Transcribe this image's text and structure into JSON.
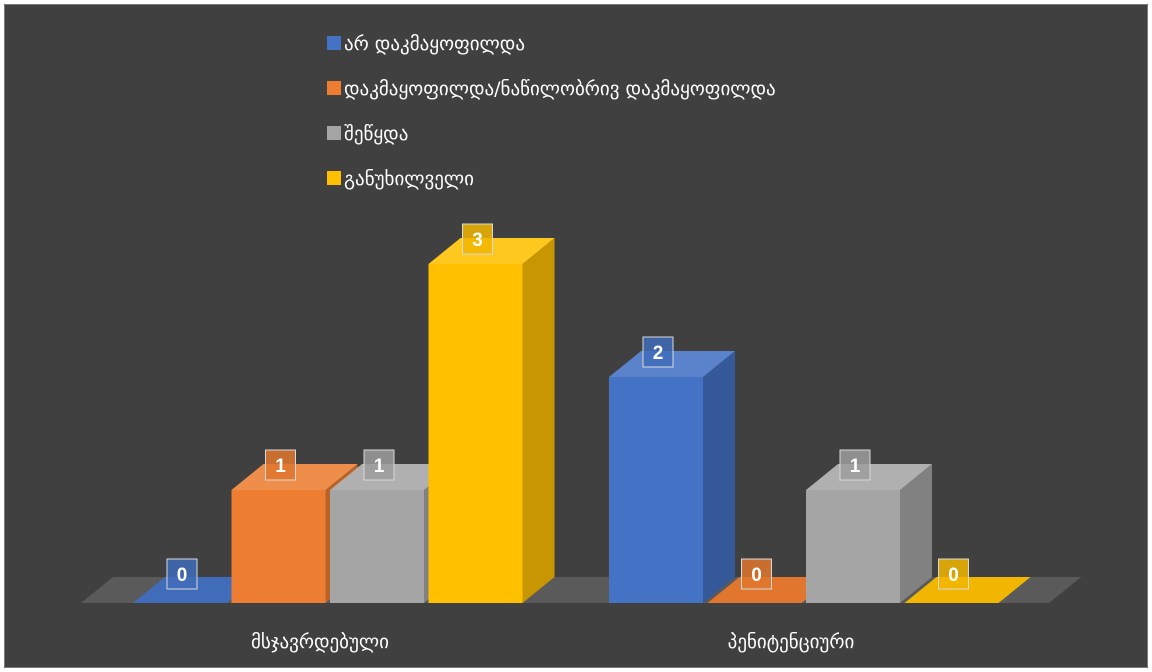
{
  "chart_data": {
    "type": "bar",
    "style": "3d-clustered-column",
    "categories": [
      "მსჯავრდებული",
      "პენიტენციური"
    ],
    "series": [
      {
        "name": "არ დაკმაყოფილდა",
        "color": "#4472c4",
        "values": [
          0,
          2
        ]
      },
      {
        "name": "დაკმაყოფილდა/ნაწილობრივ დაკმაყოფილდა",
        "color": "#ed7d31",
        "values": [
          1,
          0
        ]
      },
      {
        "name": "შეწყდა",
        "color": "#a5a5a5",
        "values": [
          1,
          1
        ]
      },
      {
        "name": "განუხილველი",
        "color": "#ffc000",
        "values": [
          3,
          0
        ]
      }
    ],
    "data_labels": true,
    "legend_position": "top",
    "grid": false,
    "background": "#404040"
  }
}
